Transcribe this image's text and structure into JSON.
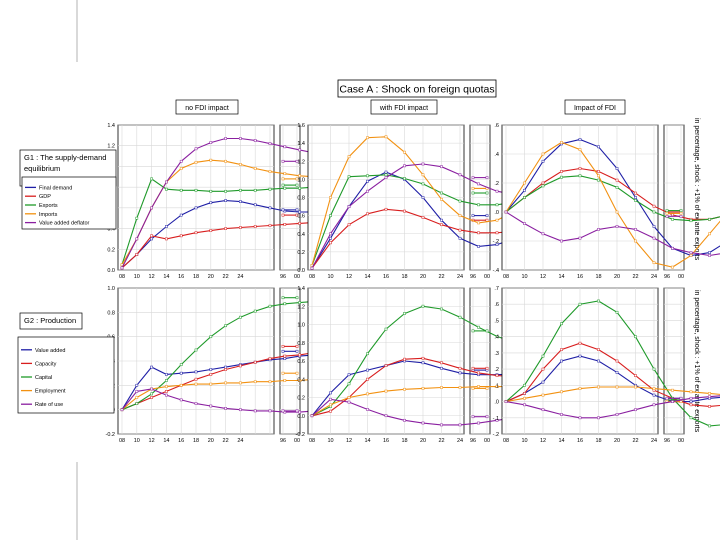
{
  "case_title": "Case A : Shock on foreign quotas",
  "column_titles": [
    "no FDI impact",
    "with FDI impact",
    "Impact of FDI"
  ],
  "right_note": "in percentage, shock : +1% of ex ante exports",
  "x_ticks": [
    "08",
    "10",
    "12",
    "14",
    "16",
    "18",
    "20",
    "22",
    "24",
    "96",
    "00"
  ],
  "colors": {
    "blue": "#1f1fa6",
    "red": "#d81e1e",
    "green": "#1f9a2a",
    "orange": "#f29111",
    "purple": "#8a1fa0"
  },
  "rows": [
    {
      "title": "G1 : The supply-demand equilibrium",
      "legend": [
        {
          "name": "Final demand",
          "color": "blue"
        },
        {
          "name": "GDP",
          "color": "red"
        },
        {
          "name": "Exports",
          "color": "green"
        },
        {
          "name": "Imports",
          "color": "orange"
        },
        {
          "name": "Value added deflator",
          "color": "purple"
        }
      ]
    },
    {
      "title": "G2 : Production",
      "legend": [
        {
          "name": "Value added",
          "color": "blue"
        },
        {
          "name": "Capacity",
          "color": "red"
        },
        {
          "name": "Capital",
          "color": "green"
        },
        {
          "name": "Employment",
          "color": "orange"
        },
        {
          "name": "Rate of use",
          "color": "purple"
        }
      ]
    }
  ],
  "chart_data": [
    {
      "type": "line",
      "id": "r0c0",
      "row": 0,
      "col": 0,
      "title": "no FDI impact",
      "ylim": [
        0,
        1.4
      ],
      "y_ticks": [
        "0.0",
        "0.2",
        "0.4",
        "0.6",
        "0.8",
        "1.0",
        "1.2",
        "1.4"
      ],
      "x_ticks": [
        "08",
        "10",
        "12",
        "14",
        "16",
        "18",
        "20",
        "22",
        "24",
        "96",
        "00"
      ],
      "series": [
        {
          "name": "Final demand",
          "color": "blue",
          "values": [
            0.02,
            0.15,
            0.3,
            0.42,
            0.53,
            0.6,
            0.65,
            0.67,
            0.66,
            0.63,
            0.6,
            0.57,
            0.56,
            0.56,
            0.56,
            0.57,
            0.57,
            0.57,
            0.56,
            0.56,
            0.55
          ],
          "tail": [
            0.58,
            0.58
          ]
        },
        {
          "name": "GDP",
          "color": "red",
          "values": [
            0.02,
            0.15,
            0.33,
            0.3,
            0.33,
            0.36,
            0.38,
            0.4,
            0.41,
            0.42,
            0.43,
            0.44,
            0.45,
            0.46,
            0.47,
            0.48,
            0.49,
            0.49,
            0.5,
            0.5,
            0.5
          ],
          "tail": [
            0.53,
            0.53
          ]
        },
        {
          "name": "Exports",
          "color": "green",
          "values": [
            0.05,
            0.5,
            0.88,
            0.78,
            0.77,
            0.77,
            0.76,
            0.76,
            0.77,
            0.77,
            0.78,
            0.79,
            0.79,
            0.8,
            0.8,
            0.8,
            0.8,
            0.81,
            0.81,
            0.81,
            0.81
          ],
          "tail": [
            0.82,
            0.82
          ]
        },
        {
          "name": "Imports",
          "color": "orange",
          "values": [
            0.05,
            0.3,
            0.6,
            0.85,
            0.98,
            1.04,
            1.06,
            1.05,
            1.02,
            0.98,
            0.95,
            0.93,
            0.91,
            0.9,
            0.89,
            0.89,
            0.88,
            0.88,
            0.88,
            0.88,
            0.87
          ],
          "tail": [
            0.88,
            0.88
          ]
        },
        {
          "name": "Value added deflator",
          "color": "purple",
          "values": [
            0.02,
            0.3,
            0.6,
            0.85,
            1.05,
            1.17,
            1.23,
            1.27,
            1.27,
            1.25,
            1.22,
            1.19,
            1.16,
            1.13,
            1.11,
            1.1,
            1.09,
            1.08,
            1.07,
            1.06,
            1.06
          ],
          "tail": [
            1.05,
            1.05
          ]
        }
      ]
    },
    {
      "type": "line",
      "id": "r0c1",
      "row": 0,
      "col": 1,
      "title": "with FDI impact",
      "ylim": [
        0,
        1.6
      ],
      "y_ticks": [
        "0.0",
        "0.2",
        "0.4",
        "0.6",
        "0.8",
        "1.0",
        "1.2",
        "1.4",
        "1.6"
      ],
      "x_ticks": [
        "08",
        "10",
        "12",
        "14",
        "16",
        "18",
        "20",
        "22",
        "24",
        "96",
        "00"
      ],
      "series": [
        {
          "name": "Final demand",
          "color": "blue",
          "values": [
            0.02,
            0.35,
            0.7,
            0.98,
            1.08,
            1.0,
            0.8,
            0.55,
            0.35,
            0.26,
            0.28,
            0.35,
            0.45,
            0.55,
            0.63,
            0.68,
            0.7
          ],
          "tail": [
            0.6,
            0.6
          ]
        },
        {
          "name": "GDP",
          "color": "red",
          "values": [
            0.02,
            0.3,
            0.5,
            0.62,
            0.67,
            0.65,
            0.58,
            0.5,
            0.44,
            0.41,
            0.41,
            0.43,
            0.46,
            0.5,
            0.53,
            0.56,
            0.58
          ],
          "tail": [
            0.55,
            0.55
          ]
        },
        {
          "name": "Exports",
          "color": "green",
          "values": [
            0.05,
            0.6,
            1.03,
            1.04,
            1.05,
            1.01,
            0.95,
            0.85,
            0.76,
            0.72,
            0.72,
            0.75,
            0.79,
            0.83,
            0.86,
            0.88,
            0.88
          ],
          "tail": [
            0.85,
            0.85
          ]
        },
        {
          "name": "Imports",
          "color": "orange",
          "values": [
            0.05,
            0.8,
            1.25,
            1.46,
            1.47,
            1.3,
            1.05,
            0.78,
            0.6,
            0.52,
            0.55,
            0.65,
            0.78,
            0.9,
            0.97,
            1.0,
            1.0
          ],
          "tail": [
            0.9,
            0.9
          ]
        },
        {
          "name": "Value added deflator",
          "color": "purple",
          "values": [
            0.02,
            0.4,
            0.7,
            0.87,
            1.02,
            1.15,
            1.17,
            1.14,
            1.05,
            0.95,
            0.87,
            0.83,
            0.83,
            0.87,
            0.93,
            0.98,
            1.0
          ],
          "tail": [
            1.02,
            1.02
          ]
        }
      ]
    },
    {
      "type": "line",
      "id": "r0c2",
      "row": 0,
      "col": 2,
      "title": "Impact of FDI",
      "ylim": [
        -0.4,
        0.6
      ],
      "y_ticks": [
        "-.4",
        "-.2",
        ".0",
        ".2",
        ".4",
        ".6"
      ],
      "x_ticks": [
        "08",
        "10",
        "12",
        "14",
        "16",
        "18",
        "20",
        "22",
        "24",
        "96",
        "00"
      ],
      "series": [
        {
          "name": "Final demand",
          "color": "blue",
          "values": [
            0.0,
            0.15,
            0.35,
            0.47,
            0.5,
            0.45,
            0.3,
            0.1,
            -0.1,
            -0.25,
            -0.3,
            -0.28,
            -0.2,
            -0.1,
            0.0,
            0.1,
            0.15
          ],
          "tail": [
            0.0,
            0.0
          ]
        },
        {
          "name": "GDP",
          "color": "red",
          "values": [
            0.0,
            0.1,
            0.2,
            0.28,
            0.3,
            0.28,
            0.22,
            0.13,
            0.04,
            -0.02,
            -0.05,
            -0.05,
            -0.02,
            0.02,
            0.05,
            0.07,
            0.08
          ],
          "tail": [
            0.0,
            0.0
          ]
        },
        {
          "name": "Exports",
          "color": "green",
          "values": [
            0.0,
            0.1,
            0.18,
            0.24,
            0.25,
            0.22,
            0.17,
            0.08,
            0.0,
            -0.05,
            -0.06,
            -0.05,
            -0.02,
            0.01,
            0.04,
            0.06,
            0.08
          ],
          "tail": [
            0.01,
            0.01
          ]
        },
        {
          "name": "Imports",
          "color": "orange",
          "values": [
            0.0,
            0.2,
            0.4,
            0.48,
            0.43,
            0.25,
            0.0,
            -0.2,
            -0.35,
            -0.38,
            -0.3,
            -0.15,
            0.0,
            0.08,
            0.12,
            0.12,
            0.08
          ],
          "tail": [
            -0.01,
            -0.01
          ]
        },
        {
          "name": "Value added deflator",
          "color": "purple",
          "values": [
            0.0,
            -0.08,
            -0.15,
            -0.2,
            -0.18,
            -0.12,
            -0.1,
            -0.12,
            -0.18,
            -0.25,
            -0.28,
            -0.3,
            -0.28,
            -0.25,
            -0.2,
            -0.15,
            -0.1
          ],
          "tail": [
            -0.03,
            -0.03
          ]
        }
      ]
    },
    {
      "type": "line",
      "id": "r1c0",
      "row": 1,
      "col": 0,
      "title": "no FDI impact",
      "ylim": [
        -0.2,
        1.0
      ],
      "y_ticks": [
        "-0.2",
        "0.0",
        "0.2",
        "0.4",
        "0.6",
        "0.8",
        "1.0"
      ],
      "x_ticks": [
        "08",
        "10",
        "12",
        "14",
        "16",
        "18",
        "20",
        "22",
        "24",
        "96",
        "00"
      ],
      "series": [
        {
          "name": "Value added",
          "color": "blue",
          "values": [
            0.0,
            0.2,
            0.35,
            0.29,
            0.3,
            0.31,
            0.33,
            0.35,
            0.37,
            0.39,
            0.41,
            0.42,
            0.44,
            0.45,
            0.46,
            0.47,
            0.47,
            0.48,
            0.48,
            0.48,
            0.48
          ],
          "tail": [
            0.48,
            0.48
          ]
        },
        {
          "name": "Capacity",
          "color": "red",
          "values": [
            0.0,
            0.05,
            0.1,
            0.15,
            0.2,
            0.25,
            0.29,
            0.33,
            0.36,
            0.39,
            0.42,
            0.44,
            0.45,
            0.47,
            0.47,
            0.48,
            0.48,
            0.48,
            0.48,
            0.48,
            0.48
          ],
          "tail": [
            0.52,
            0.52
          ]
        },
        {
          "name": "Capital",
          "color": "green",
          "values": [
            0.0,
            0.05,
            0.13,
            0.24,
            0.37,
            0.49,
            0.6,
            0.69,
            0.76,
            0.81,
            0.85,
            0.87,
            0.88,
            0.89,
            0.89,
            0.88,
            0.88,
            0.87,
            0.87,
            0.87,
            0.86
          ],
          "tail": [
            0.92,
            0.92
          ]
        },
        {
          "name": "Employment",
          "color": "orange",
          "values": [
            0.0,
            0.1,
            0.17,
            0.19,
            0.2,
            0.21,
            0.21,
            0.22,
            0.22,
            0.23,
            0.23,
            0.24,
            0.24,
            0.25,
            0.25,
            0.26,
            0.26,
            0.26,
            0.27,
            0.27,
            0.27
          ],
          "tail": [
            0.3,
            0.3
          ]
        },
        {
          "name": "Rate of use",
          "color": "purple",
          "values": [
            0.0,
            0.15,
            0.17,
            0.12,
            0.08,
            0.05,
            0.03,
            0.01,
            0.0,
            -0.01,
            -0.01,
            -0.02,
            -0.02,
            -0.01,
            -0.01,
            -0.01,
            0.0,
            0.0,
            0.0,
            0.0,
            0.0
          ],
          "tail": [
            -0.01,
            -0.01
          ]
        }
      ]
    },
    {
      "type": "line",
      "id": "r1c1",
      "row": 1,
      "col": 1,
      "title": "with FDI impact",
      "ylim": [
        -0.2,
        1.4
      ],
      "y_ticks": [
        "-0.2",
        "0.0",
        "0.2",
        "0.4",
        "0.6",
        "0.8",
        "1.0",
        "1.2",
        "1.4"
      ],
      "x_ticks": [
        "08",
        "10",
        "12",
        "14",
        "16",
        "18",
        "20",
        "22",
        "24",
        "96",
        "00"
      ],
      "series": [
        {
          "name": "Value added",
          "color": "blue",
          "values": [
            0.0,
            0.25,
            0.45,
            0.5,
            0.55,
            0.6,
            0.58,
            0.52,
            0.47,
            0.45,
            0.45,
            0.46,
            0.47,
            0.49,
            0.51,
            0.53,
            0.55
          ],
          "tail": [
            0.5,
            0.5
          ]
        },
        {
          "name": "Capacity",
          "color": "red",
          "values": [
            0.0,
            0.05,
            0.2,
            0.4,
            0.55,
            0.62,
            0.63,
            0.58,
            0.52,
            0.47,
            0.44,
            0.43,
            0.44,
            0.46,
            0.48,
            0.5,
            0.51
          ],
          "tail": [
            0.52,
            0.52
          ]
        },
        {
          "name": "Capital",
          "color": "green",
          "values": [
            0.0,
            0.1,
            0.35,
            0.68,
            0.95,
            1.12,
            1.2,
            1.17,
            1.08,
            0.97,
            0.87,
            0.8,
            0.76,
            0.75,
            0.77,
            0.82,
            0.89
          ],
          "tail": [
            0.93,
            0.93
          ]
        },
        {
          "name": "Employment",
          "color": "orange",
          "values": [
            0.0,
            0.12,
            0.2,
            0.24,
            0.27,
            0.29,
            0.3,
            0.31,
            0.31,
            0.32,
            0.32,
            0.32,
            0.32,
            0.32,
            0.32,
            0.32,
            0.32
          ],
          "tail": [
            0.3,
            0.3
          ]
        },
        {
          "name": "Rate of use",
          "color": "purple",
          "values": [
            0.0,
            0.18,
            0.15,
            0.07,
            0.0,
            -0.05,
            -0.08,
            -0.1,
            -0.1,
            -0.08,
            -0.05,
            -0.02,
            0.0,
            0.02,
            0.02,
            0.02,
            0.0
          ],
          "tail": [
            -0.01,
            -0.01
          ]
        }
      ]
    },
    {
      "type": "line",
      "id": "r1c2",
      "row": 1,
      "col": 2,
      "title": "Impact of FDI",
      "ylim": [
        -0.2,
        0.7
      ],
      "y_ticks": [
        "-.2",
        "-.1",
        ".0",
        ".1",
        ".2",
        ".3",
        ".4",
        ".5",
        ".6",
        ".7"
      ],
      "x_ticks": [
        "08",
        "10",
        "12",
        "14",
        "16",
        "18",
        "20",
        "22",
        "24",
        "96",
        "00"
      ],
      "series": [
        {
          "name": "Value added",
          "color": "blue",
          "values": [
            0.0,
            0.05,
            0.12,
            0.25,
            0.28,
            0.25,
            0.18,
            0.1,
            0.04,
            0.0,
            0.0,
            0.02,
            0.03,
            0.04,
            0.05,
            0.05,
            0.06
          ],
          "tail": [
            0.02,
            0.02
          ]
        },
        {
          "name": "Capacity",
          "color": "red",
          "values": [
            0.0,
            0.05,
            0.2,
            0.32,
            0.36,
            0.32,
            0.25,
            0.16,
            0.07,
            0.02,
            -0.02,
            -0.03,
            -0.02,
            0.0,
            0.02,
            0.03,
            0.04
          ],
          "tail": [
            0.0,
            0.0
          ]
        },
        {
          "name": "Capital",
          "color": "green",
          "values": [
            0.0,
            0.1,
            0.28,
            0.48,
            0.6,
            0.62,
            0.55,
            0.4,
            0.2,
            0.02,
            -0.1,
            -0.15,
            -0.14,
            -0.1,
            -0.05,
            0.0,
            0.05
          ],
          "tail": [
            0.01,
            0.01
          ]
        },
        {
          "name": "Employment",
          "color": "orange",
          "values": [
            0.0,
            0.02,
            0.04,
            0.06,
            0.08,
            0.09,
            0.09,
            0.09,
            0.08,
            0.07,
            0.06,
            0.05,
            0.04,
            0.03,
            0.02,
            0.02,
            0.01
          ],
          "tail": [
            0.0,
            0.0
          ]
        },
        {
          "name": "Rate of use",
          "color": "purple",
          "values": [
            0.0,
            -0.02,
            -0.05,
            -0.08,
            -0.1,
            -0.1,
            -0.08,
            -0.05,
            -0.02,
            0.0,
            0.02,
            0.03,
            0.04,
            0.04,
            0.04,
            0.04,
            0.03
          ],
          "tail": [
            0.02,
            0.02
          ]
        }
      ]
    }
  ]
}
